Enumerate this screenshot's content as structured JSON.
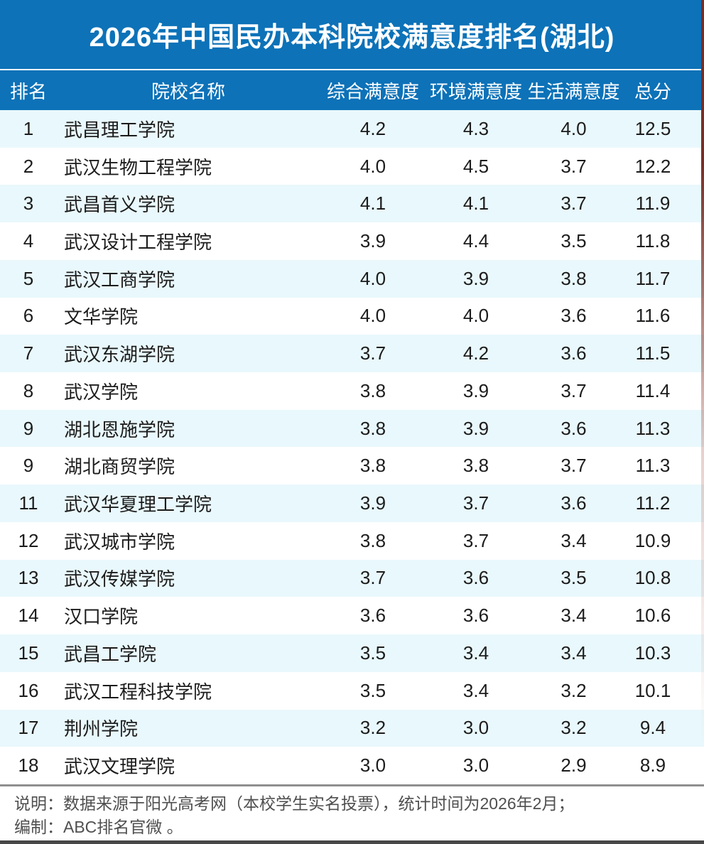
{
  "chart_data": {
    "type": "table",
    "title": "2026年中国民办本科院校满意度排名(湖北)",
    "columns": [
      "排名",
      "院校名称",
      "综合满意度",
      "环境满意度",
      "生活满意度",
      "总分"
    ],
    "rows": [
      {
        "rank": "1",
        "name": "武昌理工学院",
        "comprehensive": "4.2",
        "environment": "4.3",
        "life": "4.0",
        "total": "12.5"
      },
      {
        "rank": "2",
        "name": "武汉生物工程学院",
        "comprehensive": "4.0",
        "environment": "4.5",
        "life": "3.7",
        "total": "12.2"
      },
      {
        "rank": "3",
        "name": "武昌首义学院",
        "comprehensive": "4.1",
        "environment": "4.1",
        "life": "3.7",
        "total": "11.9"
      },
      {
        "rank": "4",
        "name": "武汉设计工程学院",
        "comprehensive": "3.9",
        "environment": "4.4",
        "life": "3.5",
        "total": "11.8"
      },
      {
        "rank": "5",
        "name": "武汉工商学院",
        "comprehensive": "4.0",
        "environment": "3.9",
        "life": "3.8",
        "total": "11.7"
      },
      {
        "rank": "6",
        "name": "文华学院",
        "comprehensive": "4.0",
        "environment": "4.0",
        "life": "3.6",
        "total": "11.6"
      },
      {
        "rank": "7",
        "name": "武汉东湖学院",
        "comprehensive": "3.7",
        "environment": "4.2",
        "life": "3.6",
        "total": "11.5"
      },
      {
        "rank": "8",
        "name": "武汉学院",
        "comprehensive": "3.8",
        "environment": "3.9",
        "life": "3.7",
        "total": "11.4"
      },
      {
        "rank": "9",
        "name": "湖北恩施学院",
        "comprehensive": "3.8",
        "environment": "3.9",
        "life": "3.6",
        "total": "11.3"
      },
      {
        "rank": "9",
        "name": "湖北商贸学院",
        "comprehensive": "3.8",
        "environment": "3.8",
        "life": "3.7",
        "total": "11.3"
      },
      {
        "rank": "11",
        "name": "武汉华夏理工学院",
        "comprehensive": "3.9",
        "environment": "3.7",
        "life": "3.6",
        "total": "11.2"
      },
      {
        "rank": "12",
        "name": "武汉城市学院",
        "comprehensive": "3.8",
        "environment": "3.7",
        "life": "3.4",
        "total": "10.9"
      },
      {
        "rank": "13",
        "name": "武汉传媒学院",
        "comprehensive": "3.7",
        "environment": "3.6",
        "life": "3.5",
        "total": "10.8"
      },
      {
        "rank": "14",
        "name": "汉口学院",
        "comprehensive": "3.6",
        "environment": "3.6",
        "life": "3.4",
        "total": "10.6"
      },
      {
        "rank": "15",
        "name": "武昌工学院",
        "comprehensive": "3.5",
        "environment": "3.4",
        "life": "3.4",
        "total": "10.3"
      },
      {
        "rank": "16",
        "name": "武汉工程科技学院",
        "comprehensive": "3.5",
        "environment": "3.4",
        "life": "3.2",
        "total": "10.1"
      },
      {
        "rank": "17",
        "name": "荆州学院",
        "comprehensive": "3.2",
        "environment": "3.0",
        "life": "3.2",
        "total": "9.4"
      },
      {
        "rank": "18",
        "name": "武汉文理学院",
        "comprehensive": "3.0",
        "environment": "3.0",
        "life": "2.9",
        "total": "8.9"
      }
    ],
    "layout_hints": {
      "stripe_pattern": "odd rows light cyan, even rows white",
      "header_position": "top",
      "grid": false
    }
  },
  "footer": {
    "line1": "说明：数据来源于阳光高考网（本校学生实名投票），统计时间为2026年2月；",
    "line2": "编制：ABC排名官微 。"
  },
  "colors": {
    "header_blue": "#0d72b8",
    "row_stripe": "#e9f8fc",
    "row_white": "#ffffff",
    "text_dark": "#1c1c1c",
    "header_text": "#ffffff",
    "footer_text": "#4f4f4f",
    "divider_gray": "#8f8f8f",
    "bottom_bar": "#474747",
    "edge_stripe": "#7b2d24"
  }
}
